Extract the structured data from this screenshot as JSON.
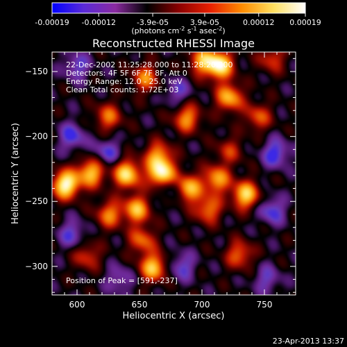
{
  "chart_data": {
    "type": "heatmap",
    "title": "Reconstructed RHESSI Image",
    "xlabel": "Heliocentric X (arcsec)",
    "ylabel": "Heliocentric Y (arcsec)",
    "xlim": [
      580,
      775
    ],
    "ylim": [
      -322,
      -135
    ],
    "x_ticks": [
      600,
      650,
      700,
      750
    ],
    "y_ticks": [
      -150,
      -200,
      -250,
      -300
    ],
    "colorbar": {
      "range": [
        -0.00019,
        0.00019
      ],
      "ticks": [
        "-0.00019",
        "-0.00012",
        "-3.9e-05",
        "3.9e-05",
        "0.00012",
        "0.00019"
      ],
      "label_main": "(photons cm",
      "label_exp1": "-2",
      "label_mid": " s",
      "label_exp2": "-1",
      "label_tail": " asec",
      "label_exp3": "-2",
      "label_close": ")",
      "colors": [
        "#0000ff",
        "#5a2ad8",
        "#8a2aa0",
        "#000000",
        "#8a0000",
        "#e82000",
        "#ff8c00",
        "#ffe060",
        "#ffffff"
      ]
    },
    "annotations": [
      "22-Dec-2002 11:25:28.000 to 11:28:20.000",
      "Detectors: 4F 5F 6F 7F 8F, Att 0",
      "Energy Range: 12.0 - 25.0 keV",
      "Clean     Total counts: 1.72E+03"
    ],
    "peak_label": "Position of Peak = [591,-237]",
    "peak": [
      591,
      -237
    ],
    "sources": [
      {
        "x": 591,
        "y": -237,
        "v": 1.0
      },
      {
        "x": 611,
        "y": -228,
        "v": 0.75
      },
      {
        "x": 640,
        "y": -229,
        "v": 0.85
      },
      {
        "x": 668,
        "y": -229,
        "v": 0.95
      },
      {
        "x": 689,
        "y": -240,
        "v": 0.75
      },
      {
        "x": 712,
        "y": -233,
        "v": 0.65
      },
      {
        "x": 735,
        "y": -245,
        "v": 0.8
      },
      {
        "x": 705,
        "y": -256,
        "v": 0.55
      },
      {
        "x": 648,
        "y": -256,
        "v": 0.7
      },
      {
        "x": 626,
        "y": -260,
        "v": 0.55
      },
      {
        "x": 661,
        "y": -301,
        "v": 0.75
      },
      {
        "x": 652,
        "y": -280,
        "v": 0.5
      },
      {
        "x": 700,
        "y": -142,
        "v": 0.6
      },
      {
        "x": 714,
        "y": -145,
        "v": 0.95
      },
      {
        "x": 722,
        "y": -170,
        "v": 0.7
      },
      {
        "x": 655,
        "y": -155,
        "v": 0.55
      },
      {
        "x": 625,
        "y": -185,
        "v": 0.5
      },
      {
        "x": 745,
        "y": -185,
        "v": 0.45
      },
      {
        "x": 730,
        "y": -291,
        "v": 0.5
      },
      {
        "x": 608,
        "y": -292,
        "v": 0.4
      },
      {
        "x": 688,
        "y": -186,
        "v": 0.6
      },
      {
        "x": 665,
        "y": -215,
        "v": 0.6
      },
      {
        "x": 722,
        "y": -211,
        "v": 0.35
      },
      {
        "x": 756,
        "y": -140,
        "v": 0.4
      },
      {
        "x": 600,
        "y": -146,
        "v": -0.35
      },
      {
        "x": 596,
        "y": -200,
        "v": -0.4
      },
      {
        "x": 624,
        "y": -212,
        "v": -0.35
      },
      {
        "x": 759,
        "y": -213,
        "v": -0.45
      },
      {
        "x": 756,
        "y": -257,
        "v": -0.4
      },
      {
        "x": 596,
        "y": -275,
        "v": -0.35
      },
      {
        "x": 684,
        "y": -300,
        "v": -0.35
      },
      {
        "x": 752,
        "y": -310,
        "v": -0.3
      },
      {
        "x": 675,
        "y": -240,
        "v": -0.3
      },
      {
        "x": 680,
        "y": -165,
        "v": -0.3
      },
      {
        "x": 634,
        "y": -310,
        "v": -0.3
      }
    ]
  },
  "footer_date": "23-Apr-2013 13:37"
}
